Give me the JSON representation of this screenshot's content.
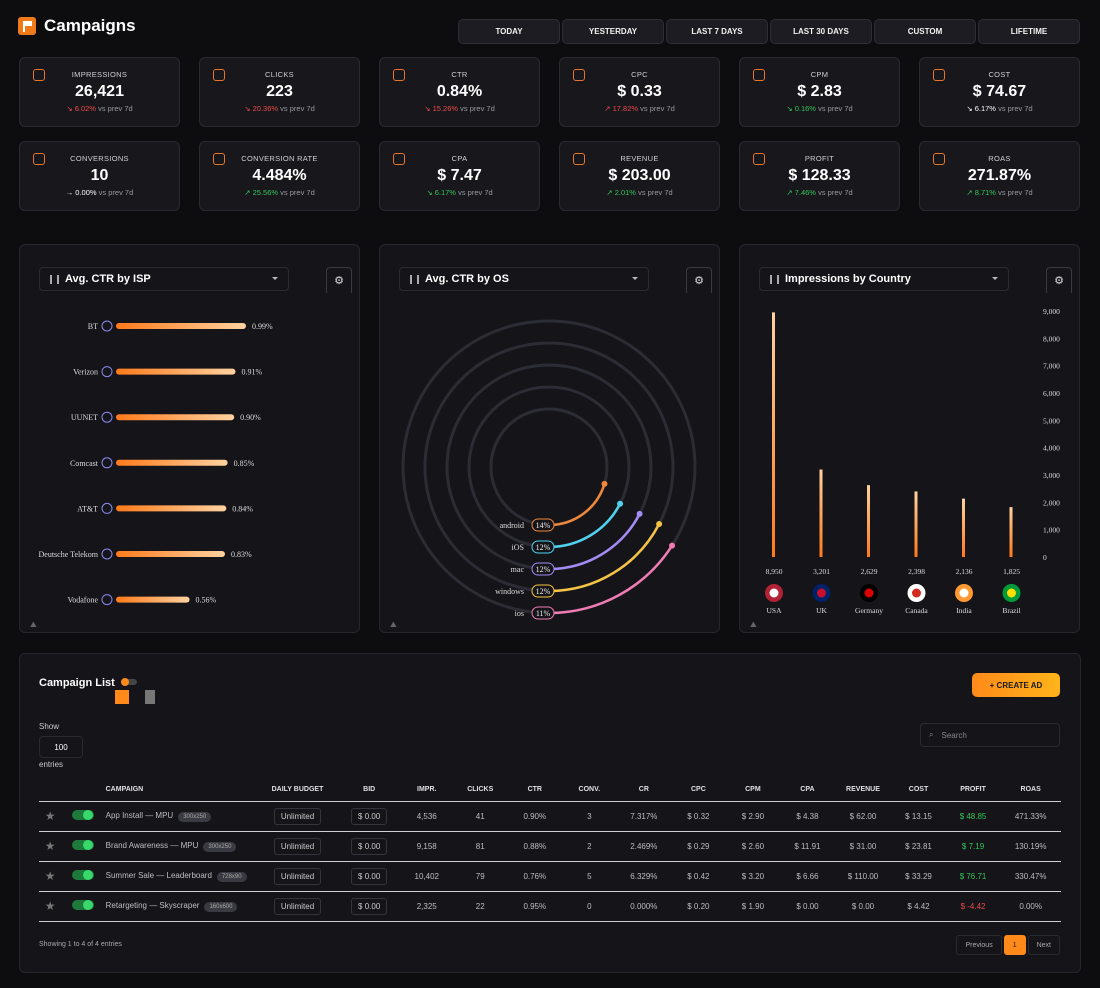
{
  "header": {
    "title": "Campaigns"
  },
  "ranges": [
    "TODAY",
    "YESTERDAY",
    "LAST 7 DAYS",
    "LAST 30 DAYS",
    "CUSTOM",
    "LIFETIME"
  ],
  "kpis": [
    {
      "label": "IMPRESSIONS",
      "value": "26,421",
      "change": "6.02%",
      "suffix": "vs prev 7d",
      "dir": "down",
      "icon": "eye-icon"
    },
    {
      "label": "CLICKS",
      "value": "223",
      "change": "20.36%",
      "suffix": "vs prev 7d",
      "dir": "down",
      "icon": "cursor-click-icon"
    },
    {
      "label": "CTR",
      "value": "0.84%",
      "change": "15.26%",
      "suffix": "vs prev 7d",
      "dir": "down",
      "icon": "pie-icon"
    },
    {
      "label": "CPC",
      "value": "$ 0.33",
      "change": "17.82%",
      "suffix": "vs prev 7d",
      "dir": "up-red",
      "icon": "coins-icon"
    },
    {
      "label": "CPM",
      "value": "$ 2.83",
      "change": "0.16%",
      "suffix": "vs prev 7d",
      "dir": "down-green",
      "icon": "coins-icon"
    },
    {
      "label": "COST",
      "value": "$ 74.67",
      "change": "6.17%",
      "suffix": "vs prev 7d",
      "dir": "neutral",
      "icon": "wallet-icon"
    },
    {
      "label": "CONVERSIONS",
      "value": "10",
      "change": "0.00%",
      "suffix": "vs prev 7d",
      "dir": "flat",
      "icon": "bulb-icon"
    },
    {
      "label": "CONVERSION RATE",
      "value": "4.484%",
      "change": "25.56%",
      "suffix": "vs prev 7d",
      "dir": "up",
      "icon": "bulb-icon"
    },
    {
      "label": "CPA",
      "value": "$ 7.47",
      "change": "6.17%",
      "suffix": "vs prev 7d",
      "dir": "down-green",
      "icon": "coins-icon"
    },
    {
      "label": "REVENUE",
      "value": "$ 203.00",
      "change": "2.01%",
      "suffix": "vs prev 7d",
      "dir": "up",
      "icon": "cash-icon"
    },
    {
      "label": "PROFIT",
      "value": "$ 128.33",
      "change": "7.46%",
      "suffix": "vs prev 7d",
      "dir": "up",
      "icon": "money-bag-icon"
    },
    {
      "label": "ROAS",
      "value": "271.87%",
      "change": "8.71%",
      "suffix": "vs prev 7d",
      "dir": "up",
      "icon": "target-icon"
    }
  ],
  "panels": {
    "isp": "Avg. CTR by ISP",
    "os": "Avg. CTR by OS",
    "country": "Impressions by Country"
  },
  "chart_data": [
    {
      "type": "bar",
      "orientation": "horizontal",
      "title": "Avg. CTR by ISP",
      "categories": [
        "BT",
        "Verizon",
        "UUNET",
        "Comcast",
        "AT&T",
        "Deutsche Telekom",
        "Vodafone"
      ],
      "values": [
        0.99,
        0.91,
        0.9,
        0.85,
        0.84,
        0.83,
        0.56
      ],
      "labels": [
        "0.99%",
        "0.91%",
        "0.90%",
        "0.85%",
        "0.84%",
        "0.83%",
        "0.56%"
      ]
    },
    {
      "type": "radial-bar",
      "title": "Avg. CTR by OS",
      "categories": [
        "android",
        "iOS",
        "mac",
        "windows",
        "ios"
      ],
      "values": [
        14,
        12,
        12,
        12,
        11
      ],
      "labels": [
        "14%",
        "12%",
        "12%",
        "12%",
        "11%"
      ],
      "colors": [
        "#f0873a",
        "#4fd3f0",
        "#a38cf5",
        "#f7c343",
        "#f27bb5"
      ]
    },
    {
      "type": "bar",
      "title": "Impressions by Country",
      "categories": [
        "USA",
        "UK",
        "Germany",
        "Canada",
        "India",
        "Brazil"
      ],
      "values": [
        8950,
        3201,
        2629,
        2398,
        2136,
        1825
      ],
      "labels": [
        "8,950",
        "3,201",
        "2,629",
        "2,398",
        "2,136",
        "1,825"
      ],
      "ylim": [
        0,
        9000
      ],
      "yticks": [
        "0",
        "1,000",
        "2,000",
        "3,000",
        "4,000",
        "5,000",
        "6,000",
        "7,000",
        "8,000",
        "9,000"
      ]
    }
  ],
  "list": {
    "title": "Campaign List",
    "create": "+ CREATE AD",
    "show": "Show",
    "page_size": "100",
    "entries": "entries",
    "search_placeholder": "Search",
    "columns": [
      "CAMPAIGN",
      "DAILY BUDGET",
      "BID",
      "IMPR.",
      "CLICKS",
      "CTR",
      "CONV.",
      "CR",
      "CPC",
      "CPM",
      "CPA",
      "REVENUE",
      "COST",
      "PROFIT",
      "ROAS"
    ],
    "rows": [
      {
        "name": "App Install — MPU",
        "size": "300x250",
        "budget": "Unlimited",
        "bid": "$ 0.00",
        "impr": "4,536",
        "clicks": "41",
        "ctr": "0.90%",
        "conv": "3",
        "cr": "7.317%",
        "cpc": "$ 0.32",
        "cpm": "$ 2.90",
        "cpa": "$ 4.38",
        "revenue": "$ 62.00",
        "cost": "$ 13.15",
        "profit": "$ 48.85",
        "roas": "471.33%",
        "pos": true
      },
      {
        "name": "Brand Awareness — MPU",
        "size": "300x250",
        "budget": "Unlimited",
        "bid": "$ 0.00",
        "impr": "9,158",
        "clicks": "81",
        "ctr": "0.88%",
        "conv": "2",
        "cr": "2.469%",
        "cpc": "$ 0.29",
        "cpm": "$ 2.60",
        "cpa": "$ 11.91",
        "revenue": "$ 31.00",
        "cost": "$ 23.81",
        "profit": "$ 7.19",
        "roas": "130.19%",
        "pos": true
      },
      {
        "name": "Summer Sale — Leaderboard",
        "size": "728x90",
        "budget": "Unlimited",
        "bid": "$ 0.00",
        "impr": "10,402",
        "clicks": "79",
        "ctr": "0.76%",
        "conv": "5",
        "cr": "6.329%",
        "cpc": "$ 0.42",
        "cpm": "$ 3.20",
        "cpa": "$ 6.66",
        "revenue": "$ 110.00",
        "cost": "$ 33.29",
        "profit": "$ 76.71",
        "roas": "330.47%",
        "pos": true
      },
      {
        "name": "Retargeting — Skyscraper",
        "size": "160x600",
        "budget": "Unlimited",
        "bid": "$ 0.00",
        "impr": "2,325",
        "clicks": "22",
        "ctr": "0.95%",
        "conv": "0",
        "cr": "0.000%",
        "cpc": "$ 0.20",
        "cpm": "$ 1.90",
        "cpa": "$ 0.00",
        "revenue": "$ 0.00",
        "cost": "$ 4.42",
        "profit": "$ -4.42",
        "roas": "0.00%",
        "pos": false
      }
    ],
    "footer": "Showing 1 to 4 of 4 entries",
    "pager": {
      "prev": "Previous",
      "page": "1",
      "next": "Next"
    }
  }
}
